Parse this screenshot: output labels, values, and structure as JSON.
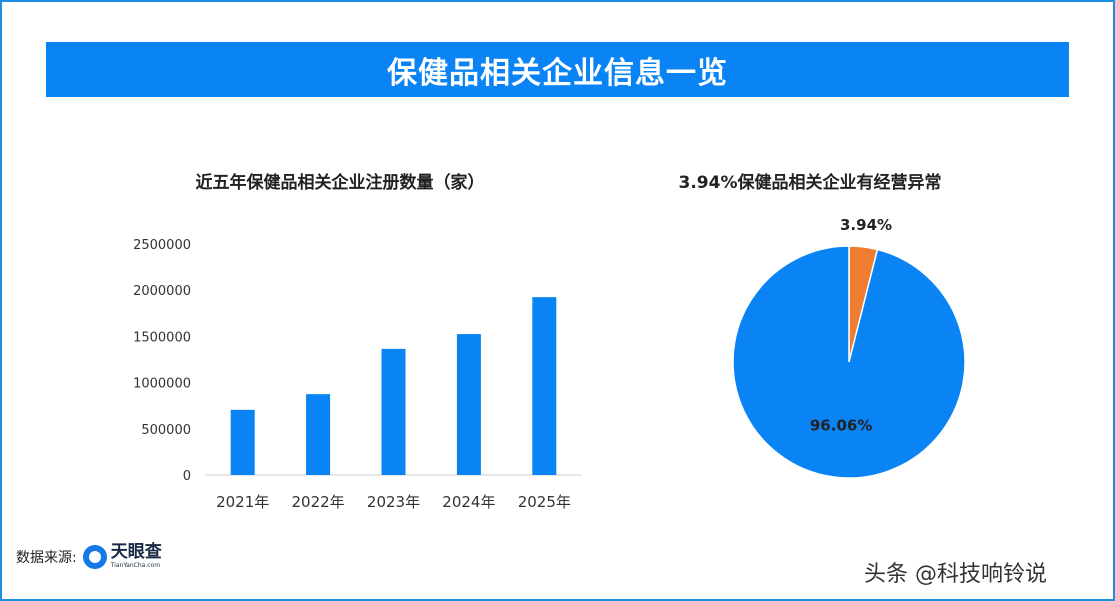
{
  "banner_title": "保健品相关企业信息一览",
  "source_label": "数据来源:",
  "source_logo": {
    "name_cn": "天眼查",
    "name_en": "TianYanCha.com",
    "icon": "tianyancha-logo-icon"
  },
  "watermark": "头条 @科技响铃说",
  "colors": {
    "accent": "#0a84f5",
    "highlight": "#ee7d31",
    "frame": "#1a8fe3"
  },
  "chart_data": [
    {
      "type": "bar",
      "title": "近五年保健品相关企业注册数量（家）",
      "categories": [
        "2021年",
        "2022年",
        "2023年",
        "2024年",
        "2025年"
      ],
      "values": [
        705000,
        875000,
        1365000,
        1525000,
        1925000
      ],
      "ylim": [
        0,
        2500000
      ],
      "yticks": [
        "0",
        "500000",
        "1000000",
        "1500000",
        "2000000",
        "2500000"
      ],
      "xlabel": "",
      "ylabel": "",
      "grid": false,
      "color": "#0a84f5"
    },
    {
      "type": "pie",
      "title": "3.94%保健品相关企业有经营异常",
      "slices": [
        {
          "value": 3.94,
          "label": "3.94%",
          "color": "#ee7d31"
        },
        {
          "value": 96.06,
          "label": "96.06%",
          "color": "#0a84f5"
        }
      ]
    }
  ]
}
